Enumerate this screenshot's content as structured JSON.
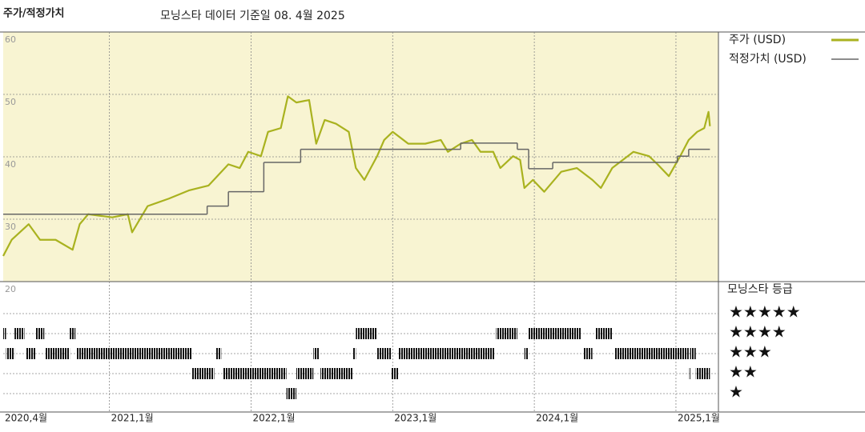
{
  "chart_data": {
    "type": "line",
    "title": "주가/적정가치",
    "subtitle": "모닝스타 데이터 기준일 08. 4월 2025",
    "xlim": [
      2020.25,
      2025.3
    ],
    "xticks": [
      {
        "value": 2020.25,
        "label": "2020,4월"
      },
      {
        "value": 2021,
        "label": "2021,1월"
      },
      {
        "value": 2022,
        "label": "2022,1월"
      },
      {
        "value": 2023,
        "label": "2023,1월"
      },
      {
        "value": 2024,
        "label": "2024,1월"
      },
      {
        "value": 2025,
        "label": "2025,1월"
      }
    ],
    "ylim": [
      20,
      60
    ],
    "yticks": [
      20,
      30,
      40,
      50,
      60
    ],
    "grid": true,
    "series": [
      {
        "name": "주가 (USD)",
        "color": "#a9b21f",
        "x": [
          2020.25,
          2020.31,
          2020.43,
          2020.51,
          2020.62,
          2020.74,
          2020.79,
          2020.85,
          2021.02,
          2021.13,
          2021.16,
          2021.27,
          2021.42,
          2021.56,
          2021.7,
          2021.84,
          2021.92,
          2021.98,
          2022.07,
          2022.12,
          2022.21,
          2022.26,
          2022.32,
          2022.41,
          2022.46,
          2022.52,
          2022.6,
          2022.69,
          2022.74,
          2022.8,
          2022.89,
          2022.94,
          2023.0,
          2023.11,
          2023.23,
          2023.34,
          2023.39,
          2023.48,
          2023.56,
          2023.62,
          2023.71,
          2023.76,
          2023.85,
          2023.9,
          2023.93,
          2023.99,
          2024.07,
          2024.19,
          2024.3,
          2024.41,
          2024.47,
          2024.55,
          2024.7,
          2024.81,
          2024.87,
          2024.95,
          2025.03,
          2025.09,
          2025.15,
          2025.2,
          2025.23,
          2025.24
        ],
        "values": [
          24.1,
          26.7,
          29.2,
          26.7,
          26.7,
          25.1,
          29.2,
          30.8,
          30.3,
          30.8,
          27.9,
          32.1,
          33.3,
          34.6,
          35.4,
          38.8,
          38.2,
          40.8,
          40.1,
          44.0,
          44.6,
          49.7,
          48.7,
          49.1,
          42.1,
          45.9,
          45.3,
          44.0,
          38.2,
          36.3,
          40.1,
          42.7,
          44.0,
          42.1,
          42.1,
          42.7,
          40.8,
          42.1,
          42.7,
          40.8,
          40.8,
          38.2,
          40.1,
          39.5,
          35.0,
          36.3,
          34.4,
          37.6,
          38.2,
          36.3,
          35.0,
          38.2,
          40.8,
          40.1,
          38.8,
          36.9,
          40.1,
          42.7,
          44.0,
          44.6,
          47.2,
          44.9
        ]
      },
      {
        "name": "적정가치 (USD)",
        "color": "#666666",
        "step": true,
        "x": [
          2020.25,
          2021.69,
          2021.84,
          2022.09,
          2022.35,
          2023.48,
          2023.88,
          2023.96,
          2024.13,
          2025.01,
          2025.09,
          2025.24
        ],
        "values": [
          30.8,
          32.1,
          34.4,
          39.1,
          41.2,
          42.2,
          41.2,
          38.1,
          39.1,
          40.1,
          41.2,
          41.2
        ]
      }
    ],
    "rating": {
      "title": "모닝스타 등급",
      "levels": [
        {
          "stars": 5,
          "label": "★★★★★"
        },
        {
          "stars": 4,
          "label": "★★★★"
        },
        {
          "stars": 3,
          "label": "★★★"
        },
        {
          "stars": 2,
          "label": "★★"
        },
        {
          "stars": 1,
          "label": "★"
        }
      ],
      "segments": [
        {
          "start": 2020.25,
          "end": 2020.27,
          "stars": 4
        },
        {
          "start": 2020.27,
          "end": 2020.33,
          "stars": 3
        },
        {
          "start": 2020.33,
          "end": 2020.4,
          "stars": 4
        },
        {
          "start": 2020.41,
          "end": 2020.48,
          "stars": 3
        },
        {
          "start": 2020.48,
          "end": 2020.54,
          "stars": 4
        },
        {
          "start": 2020.55,
          "end": 2020.72,
          "stars": 3
        },
        {
          "start": 2020.72,
          "end": 2020.76,
          "stars": 4
        },
        {
          "start": 2020.77,
          "end": 2021.58,
          "stars": 3
        },
        {
          "start": 2021.58,
          "end": 2021.74,
          "stars": 2
        },
        {
          "start": 2021.75,
          "end": 2021.79,
          "stars": 3
        },
        {
          "start": 2021.8,
          "end": 2022.25,
          "stars": 2
        },
        {
          "start": 2022.25,
          "end": 2022.32,
          "stars": 1
        },
        {
          "start": 2022.32,
          "end": 2022.44,
          "stars": 2
        },
        {
          "start": 2022.44,
          "end": 2022.48,
          "stars": 3
        },
        {
          "start": 2022.49,
          "end": 2022.72,
          "stars": 2
        },
        {
          "start": 2022.72,
          "end": 2022.74,
          "stars": 3
        },
        {
          "start": 2022.74,
          "end": 2022.89,
          "stars": 4
        },
        {
          "start": 2022.89,
          "end": 2022.99,
          "stars": 3
        },
        {
          "start": 2022.99,
          "end": 2023.04,
          "stars": 2
        },
        {
          "start": 2023.04,
          "end": 2023.72,
          "stars": 3
        },
        {
          "start": 2023.73,
          "end": 2023.88,
          "stars": 4
        },
        {
          "start": 2023.93,
          "end": 2023.96,
          "stars": 3
        },
        {
          "start": 2023.96,
          "end": 2024.33,
          "stars": 4
        },
        {
          "start": 2024.35,
          "end": 2024.41,
          "stars": 3
        },
        {
          "start": 2024.43,
          "end": 2024.55,
          "stars": 4
        },
        {
          "start": 2024.57,
          "end": 2025.09,
          "stars": 3
        },
        {
          "start": 2025.09,
          "end": 2025.1,
          "stars": 2
        },
        {
          "start": 2025.1,
          "end": 2025.14,
          "stars": 3
        },
        {
          "start": 2025.14,
          "end": 2025.24,
          "stars": 2
        }
      ]
    }
  }
}
